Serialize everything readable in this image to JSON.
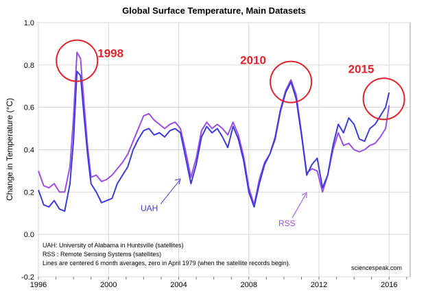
{
  "chart_data": {
    "type": "line",
    "title": "Global Surface Temperature, Main Datasets",
    "xlabel": "",
    "ylabel": "Change in Temperature  (°C)",
    "xlim": [
      1996,
      2017.2
    ],
    "ylim": [
      -0.2,
      1.0
    ],
    "xticks": [
      "1996",
      "2000",
      "2004",
      "2008",
      "2012",
      "2016"
    ],
    "yticks": [
      "-0.2",
      "0.0",
      "0.2",
      "0.4",
      "0.6",
      "0.8",
      "1.0"
    ],
    "grid": true,
    "series": [
      {
        "name": "UAH",
        "color": "#3a3adf",
        "x": [
          1996.0,
          1996.3,
          1996.6,
          1996.9,
          1997.2,
          1997.5,
          1997.8,
          1998.0,
          1998.2,
          1998.4,
          1998.6,
          1998.8,
          1999.0,
          1999.3,
          1999.6,
          1999.9,
          2000.2,
          2000.5,
          2000.8,
          2001.1,
          2001.4,
          2001.7,
          2002.0,
          2002.3,
          2002.6,
          2002.9,
          2003.2,
          2003.5,
          2003.8,
          2004.1,
          2004.4,
          2004.7,
          2005.0,
          2005.3,
          2005.6,
          2005.9,
          2006.2,
          2006.5,
          2006.8,
          2007.1,
          2007.4,
          2007.7,
          2008.0,
          2008.3,
          2008.6,
          2008.9,
          2009.2,
          2009.5,
          2009.8,
          2010.1,
          2010.4,
          2010.7,
          2011.0,
          2011.3,
          2011.6,
          2011.9,
          2012.2,
          2012.5,
          2012.8,
          2013.1,
          2013.4,
          2013.7,
          2014.0,
          2014.3,
          2014.6,
          2014.9,
          2015.2,
          2015.5,
          2015.8,
          2016.0
        ],
        "y": [
          0.21,
          0.14,
          0.13,
          0.16,
          0.12,
          0.11,
          0.24,
          0.44,
          0.77,
          0.75,
          0.56,
          0.38,
          0.24,
          0.2,
          0.15,
          0.16,
          0.17,
          0.24,
          0.28,
          0.32,
          0.4,
          0.45,
          0.49,
          0.5,
          0.47,
          0.48,
          0.46,
          0.49,
          0.5,
          0.48,
          0.36,
          0.24,
          0.33,
          0.46,
          0.51,
          0.48,
          0.5,
          0.46,
          0.41,
          0.51,
          0.45,
          0.35,
          0.2,
          0.13,
          0.24,
          0.33,
          0.38,
          0.45,
          0.58,
          0.67,
          0.72,
          0.64,
          0.47,
          0.28,
          0.33,
          0.36,
          0.22,
          0.28,
          0.42,
          0.52,
          0.48,
          0.55,
          0.52,
          0.45,
          0.44,
          0.5,
          0.52,
          0.56,
          0.6,
          0.67
        ]
      },
      {
        "name": "RSS",
        "color": "#9a4de8",
        "x": [
          1996.0,
          1996.3,
          1996.6,
          1996.9,
          1997.2,
          1997.5,
          1997.8,
          1998.0,
          1998.2,
          1998.4,
          1998.6,
          1998.8,
          1999.0,
          1999.3,
          1999.6,
          1999.9,
          2000.2,
          2000.5,
          2000.8,
          2001.1,
          2001.4,
          2001.7,
          2002.0,
          2002.3,
          2002.6,
          2002.9,
          2003.2,
          2003.5,
          2003.8,
          2004.1,
          2004.4,
          2004.7,
          2005.0,
          2005.3,
          2005.6,
          2005.9,
          2006.2,
          2006.5,
          2006.8,
          2007.1,
          2007.4,
          2007.7,
          2008.0,
          2008.3,
          2008.6,
          2008.9,
          2009.2,
          2009.5,
          2009.8,
          2010.1,
          2010.4,
          2010.7,
          2011.0,
          2011.3,
          2011.6,
          2011.9,
          2012.2,
          2012.5,
          2012.8,
          2013.1,
          2013.4,
          2013.7,
          2014.0,
          2014.3,
          2014.6,
          2014.9,
          2015.2,
          2015.5,
          2015.8,
          2016.0
        ],
        "y": [
          0.3,
          0.23,
          0.22,
          0.24,
          0.2,
          0.2,
          0.32,
          0.55,
          0.86,
          0.83,
          0.62,
          0.42,
          0.27,
          0.28,
          0.25,
          0.26,
          0.28,
          0.31,
          0.34,
          0.38,
          0.44,
          0.5,
          0.56,
          0.57,
          0.54,
          0.52,
          0.5,
          0.52,
          0.53,
          0.5,
          0.39,
          0.27,
          0.36,
          0.49,
          0.53,
          0.5,
          0.52,
          0.5,
          0.47,
          0.53,
          0.47,
          0.37,
          0.22,
          0.14,
          0.26,
          0.34,
          0.38,
          0.46,
          0.59,
          0.68,
          0.73,
          0.66,
          0.48,
          0.29,
          0.31,
          0.3,
          0.2,
          0.28,
          0.4,
          0.48,
          0.42,
          0.43,
          0.4,
          0.39,
          0.4,
          0.42,
          0.43,
          0.46,
          0.5,
          0.61
        ]
      }
    ],
    "annotations": {
      "circles": [
        {
          "label": "1998",
          "cx": 1998.2,
          "cy": 0.82
        },
        {
          "label": "2010",
          "cx": 2010.4,
          "cy": 0.72
        },
        {
          "label": "2015",
          "cx": 2015.7,
          "cy": 0.64
        }
      ],
      "uah_label": "UAH",
      "rss_label": "RSS",
      "notes": [
        "UAH: University of Alabama in Huntsville (satellites)",
        "RSS : Remote Sensing Systems (satellites)",
        "Lines are centered 6 month averages, zero in April 1979 (when the satellite records begin)."
      ],
      "credit": "sciencespeak.com"
    }
  }
}
